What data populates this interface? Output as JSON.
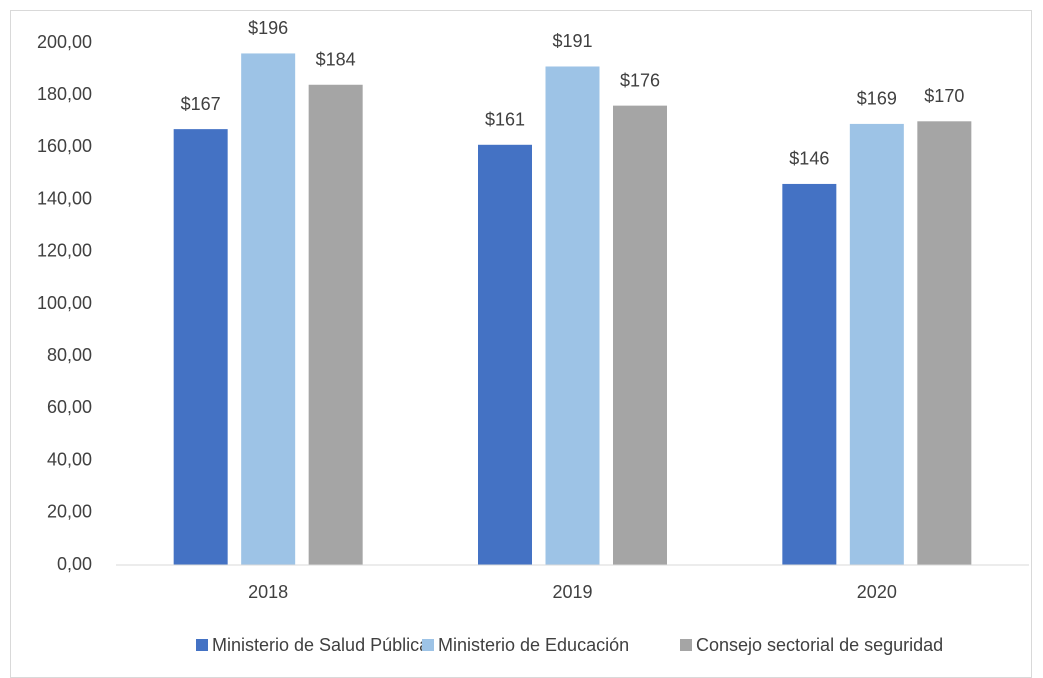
{
  "chart_data": {
    "type": "bar",
    "categories": [
      "2018",
      "2019",
      "2020"
    ],
    "series": [
      {
        "name": "Ministerio de Salud Pública",
        "color": "#4472c4",
        "values": [
          167,
          161,
          146
        ],
        "value_labels": [
          "$167",
          "$161",
          "$146"
        ]
      },
      {
        "name": "Ministerio de Educación",
        "color": "#9dc3e6",
        "values": [
          196,
          191,
          169
        ],
        "value_labels": [
          "$196",
          "$191",
          "$169"
        ]
      },
      {
        "name": "Consejo sectorial de seguridad",
        "color": "#a5a5a5",
        "values": [
          184,
          176,
          170
        ],
        "value_labels": [
          "$184",
          "$176",
          "$170"
        ]
      }
    ],
    "ylim": [
      0,
      200
    ],
    "yticks": [
      {
        "value": 0,
        "label": "0,00"
      },
      {
        "value": 20,
        "label": "20,00"
      },
      {
        "value": 40,
        "label": "40,00"
      },
      {
        "value": 60,
        "label": "60,00"
      },
      {
        "value": 80,
        "label": "80,00"
      },
      {
        "value": 100,
        "label": "100,00"
      },
      {
        "value": 120,
        "label": "120,00"
      },
      {
        "value": 140,
        "label": "140,00"
      },
      {
        "value": 160,
        "label": "160,00"
      },
      {
        "value": 180,
        "label": "180,00"
      },
      {
        "value": 200,
        "label": "200,00"
      }
    ],
    "grid": false,
    "legend": "bottom"
  }
}
